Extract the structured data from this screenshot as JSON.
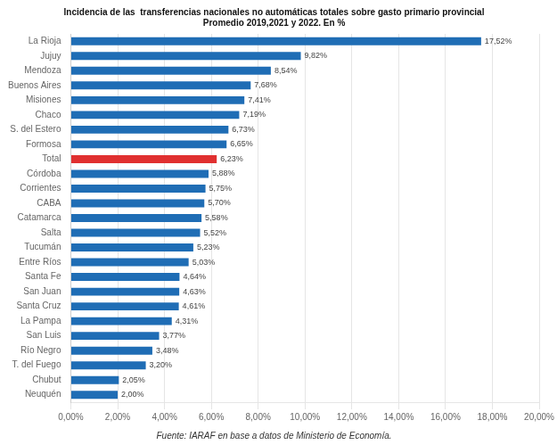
{
  "chart_data": {
    "type": "bar",
    "orientation": "horizontal",
    "title": "Incidencia de las  transferencias nacionales no automáticas totales sobre gasto primario provincial",
    "subtitle": "Promedio 2019,2021 y 2022. En %",
    "annotations": [
      "Fuente: IARAF en base a datos de Ministerio de Economía."
    ],
    "categories": [
      "La Rioja",
      "Jujuy",
      "Mendoza",
      "Buenos Aires",
      "Misiones",
      "Chaco",
      "S. del Estero",
      "Formosa",
      "Total",
      "Córdoba",
      "Corrientes",
      "CABA",
      "Catamarca",
      "Salta",
      "Tucumán",
      "Entre Ríos",
      "Santa Fe",
      "San Juan",
      "Santa Cruz",
      "La Pampa",
      "San Luis",
      "Río Negro",
      "T. del Fuego",
      "Chubut",
      "Neuquén"
    ],
    "values": [
      17.52,
      9.82,
      8.54,
      7.68,
      7.41,
      7.19,
      6.73,
      6.65,
      6.23,
      5.88,
      5.75,
      5.7,
      5.58,
      5.52,
      5.23,
      5.03,
      4.64,
      4.63,
      4.61,
      4.31,
      3.77,
      3.48,
      3.2,
      2.05,
      2.0
    ],
    "value_labels": [
      "17,52%",
      "9,82%",
      "8,54%",
      "7,68%",
      "7,41%",
      "7,19%",
      "6,73%",
      "6,65%",
      "6,23%",
      "5,88%",
      "5,75%",
      "5,70%",
      "5,58%",
      "5,52%",
      "5,23%",
      "5,03%",
      "4,64%",
      "4,63%",
      "4,61%",
      "4,31%",
      "3,77%",
      "3,48%",
      "3,20%",
      "2,05%",
      "2,00%"
    ],
    "data_labels": true,
    "colors": [
      "#1f6db5",
      "#1f6db5",
      "#1f6db5",
      "#1f6db5",
      "#1f6db5",
      "#1f6db5",
      "#1f6db5",
      "#1f6db5",
      "#e03030",
      "#1f6db5",
      "#1f6db5",
      "#1f6db5",
      "#1f6db5",
      "#1f6db5",
      "#1f6db5",
      "#1f6db5",
      "#1f6db5",
      "#1f6db5",
      "#1f6db5",
      "#1f6db5",
      "#1f6db5",
      "#1f6db5",
      "#1f6db5",
      "#1f6db5",
      "#1f6db5"
    ],
    "xlim": [
      0,
      20
    ],
    "xticks": [
      {
        "value": 0,
        "label": "0,00%"
      },
      {
        "value": 2,
        "label": "2,00%"
      },
      {
        "value": 4,
        "label": "4,00%"
      },
      {
        "value": 6,
        "label": "6,00%"
      },
      {
        "value": 8,
        "label": "8,00%"
      },
      {
        "value": 10,
        "label": "10,00%"
      },
      {
        "value": 12,
        "label": "12,00%"
      },
      {
        "value": 14,
        "label": "14,00%"
      },
      {
        "value": 16,
        "label": "16,00%"
      },
      {
        "value": 18,
        "label": "18,00%"
      },
      {
        "value": 20,
        "label": "20,00%"
      }
    ],
    "grid": true
  }
}
